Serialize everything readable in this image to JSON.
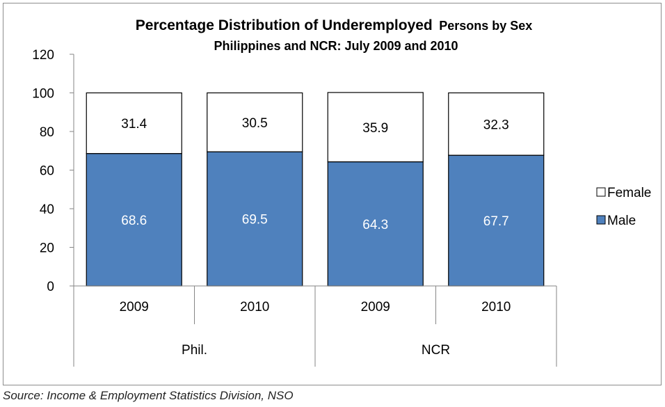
{
  "chart_data": {
    "type": "bar",
    "stacked": true,
    "title": "Percentage Distribution of Underemployed",
    "title_suffix": "Persons by Sex",
    "subtitle": "Philippines and NCR: July 2009 and 2010",
    "categories": [
      "2009",
      "2010",
      "2009",
      "2010"
    ],
    "groups": [
      {
        "label": "Phil.",
        "span": 2
      },
      {
        "label": "NCR",
        "span": 2
      }
    ],
    "series": [
      {
        "name": "Male",
        "values": [
          68.6,
          69.5,
          64.3,
          67.7
        ],
        "color": "#4f81bd",
        "label_color": "#ffffff"
      },
      {
        "name": "Female",
        "values": [
          31.4,
          30.5,
          35.9,
          32.3
        ],
        "color": "#ffffff",
        "label_color": "#000000"
      }
    ],
    "legend_order": [
      "Female",
      "Male"
    ],
    "ylim": [
      0,
      120
    ],
    "yticks": [
      "0",
      "20",
      "40",
      "60",
      "80",
      "100",
      "120"
    ],
    "xlabel": "",
    "ylabel": "",
    "grid": false,
    "legend_position": "right"
  },
  "source": "Source: Income & Employment Statistics Division, NSO"
}
